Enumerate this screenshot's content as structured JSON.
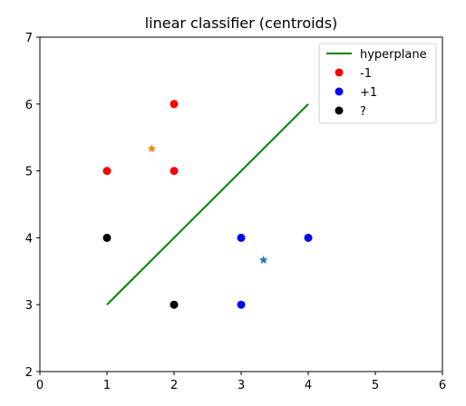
{
  "chart_data": {
    "type": "scatter",
    "title": "linear classifier (centroids)",
    "xlabel": "",
    "ylabel": "",
    "xlim": [
      0,
      6
    ],
    "ylim": [
      2,
      7
    ],
    "xticks": [
      0,
      1,
      2,
      3,
      4,
      5,
      6
    ],
    "yticks": [
      2,
      3,
      4,
      5,
      6,
      7
    ],
    "grid": false,
    "legend_position": "top-right",
    "series": [
      {
        "name": "hyperplane",
        "kind": "line",
        "color": "#008000",
        "points": [
          [
            1,
            3
          ],
          [
            4,
            6
          ]
        ]
      },
      {
        "name": "-1",
        "kind": "scatter",
        "marker": "circle",
        "color": "#ff0000",
        "points": [
          [
            1,
            5
          ],
          [
            2,
            5
          ],
          [
            2,
            6
          ]
        ]
      },
      {
        "name": "+1",
        "kind": "scatter",
        "marker": "circle",
        "color": "#0000ff",
        "points": [
          [
            3,
            4
          ],
          [
            4,
            4
          ],
          [
            3,
            3
          ]
        ]
      },
      {
        "name": "?",
        "kind": "scatter",
        "marker": "circle",
        "color": "#000000",
        "points": [
          [
            1,
            4
          ],
          [
            2,
            3
          ]
        ]
      },
      {
        "kind": "scatter",
        "marker": "star",
        "color": "#ff7f0e",
        "points": [
          [
            1.667,
            5.333
          ]
        ]
      },
      {
        "kind": "scatter",
        "marker": "star",
        "color": "#1f77b4",
        "points": [
          [
            3.333,
            3.667
          ]
        ]
      }
    ]
  }
}
